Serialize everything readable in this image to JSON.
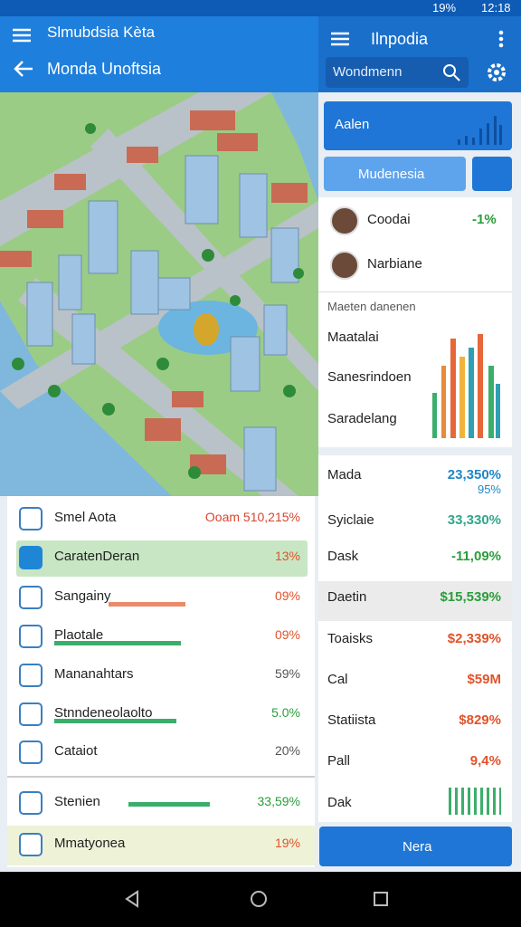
{
  "status_bar": {
    "battery": "19%",
    "time": "12:18"
  },
  "left_header": {
    "title": "Slmubdsia Kèta",
    "subtitle": "Monda Unoftsia"
  },
  "right_header": {
    "title": "Ilnpodia",
    "search_placeholder": "Wondmenn"
  },
  "actions": {
    "primary": "Aalen",
    "secondary": "Mudenesia"
  },
  "people": [
    {
      "name": "Coodai",
      "change": "-1%"
    },
    {
      "name": "Narbiane"
    }
  ],
  "chart_card": {
    "title": "Maeten danenen",
    "labels": [
      "Maatalai",
      "Sanesrindoen",
      "Saradelang"
    ]
  },
  "stats": [
    {
      "name": "Mada",
      "value": "23,350%",
      "sub": "95%"
    },
    {
      "name": "Syiclaie",
      "value": "33,330%"
    },
    {
      "name": "Dask",
      "value": "-11,09%"
    },
    {
      "name": "Daetin",
      "value": "$15,539%"
    },
    {
      "name": "Toaisks",
      "value": "$2,339%"
    },
    {
      "name": "Cal",
      "value": "$59M"
    },
    {
      "name": "Statiista",
      "value": "$829%"
    },
    {
      "name": "Pall",
      "value": "9,4%"
    },
    {
      "name": "Dak"
    }
  ],
  "bottom_button": "Nera",
  "left_list": [
    {
      "name": "Smel Aota",
      "value": "Ooam 510,215%"
    },
    {
      "name": "CaratenDeran",
      "value": "13%"
    },
    {
      "name": "Sangainy",
      "value": "09%"
    },
    {
      "name": "Plaotale",
      "value": "09%"
    },
    {
      "name": "Mananahtars",
      "value": "59%"
    },
    {
      "name": "Stnndeneolaolto",
      "value": "5.0%"
    },
    {
      "name": "Cataiot",
      "value": "20%"
    },
    {
      "name": "Stenien",
      "value": "33,59%"
    },
    {
      "name": "Mmatyonea",
      "value": "19%"
    }
  ]
}
